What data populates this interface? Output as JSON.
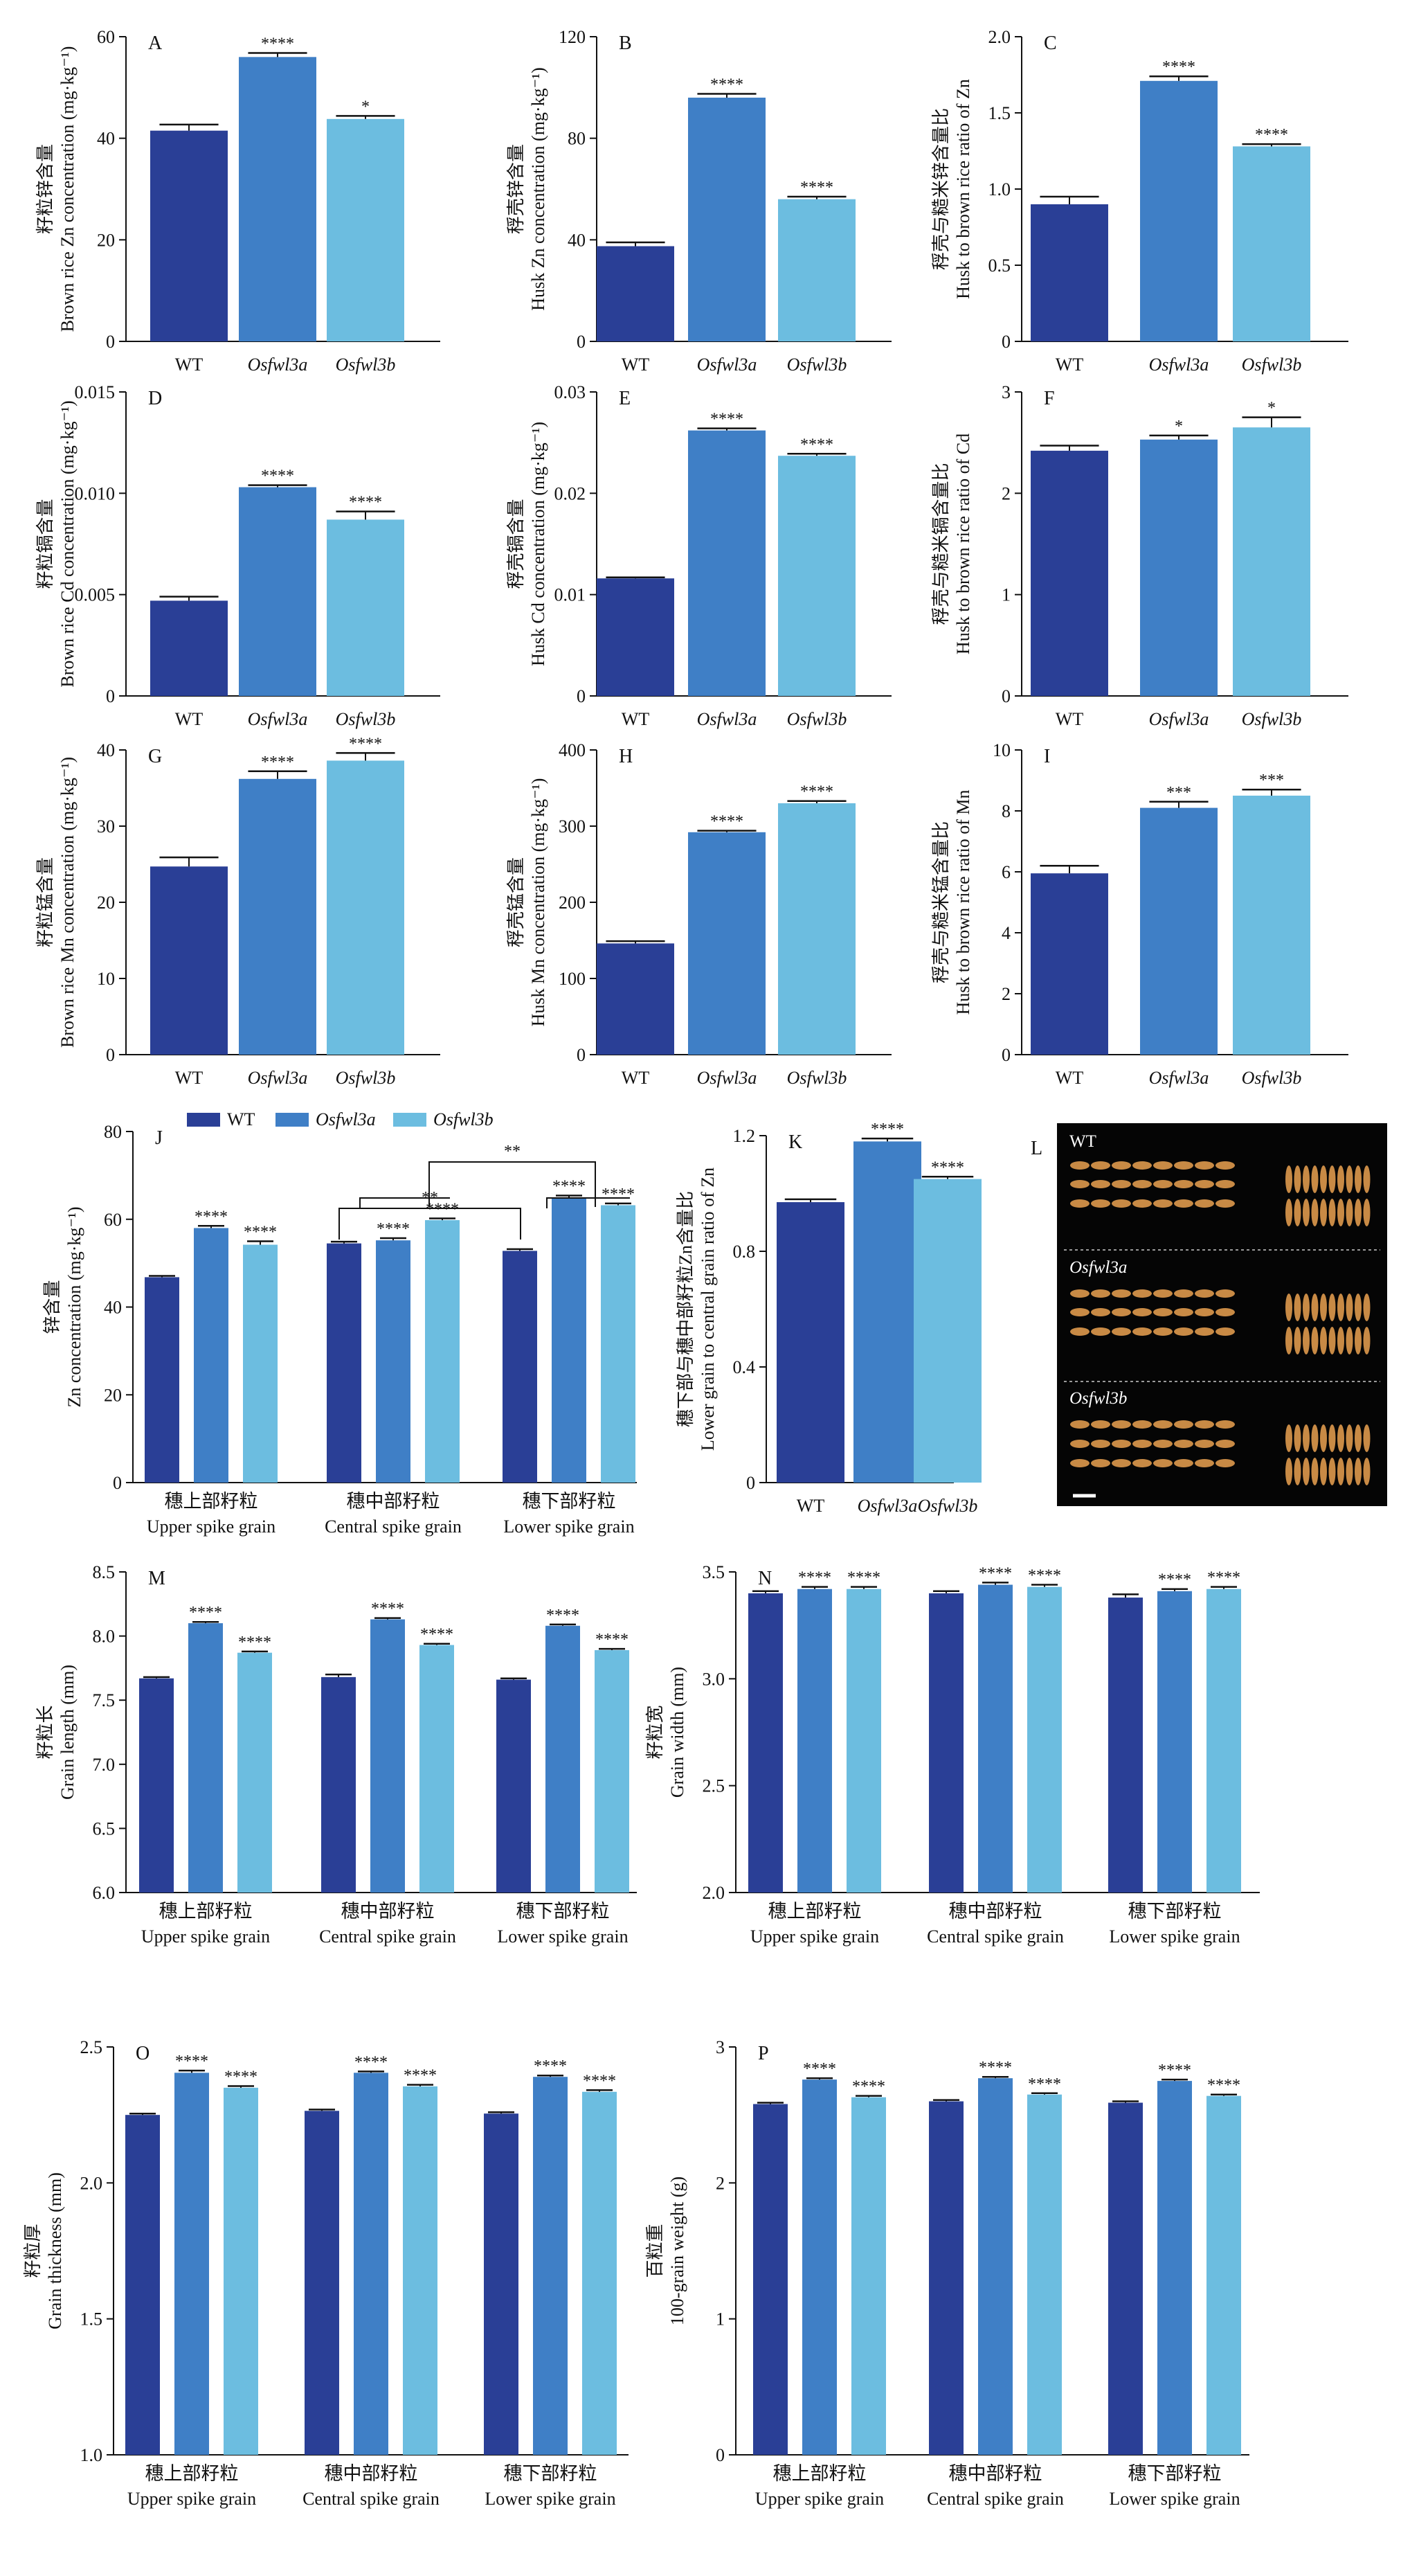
{
  "colors": {
    "wt": "#2a3f96",
    "osfwl3a": "#3f7fc6",
    "osfwl3b": "#6cbde0",
    "photo_bg": "#050505",
    "grain": "#c88a45"
  },
  "legend": {
    "items": [
      "WT",
      "Osfwl3a",
      "Osfwl3b"
    ]
  },
  "chart_data": [
    {
      "panel": "A",
      "type": "bar",
      "categories": [
        "WT",
        "Osfwl3a",
        "Osfwl3b"
      ],
      "values": [
        41.5,
        56,
        43.8
      ],
      "errors": [
        1.2,
        0.8,
        0.6
      ],
      "significance": [
        "",
        "****",
        "*"
      ],
      "ylim": [
        0,
        60
      ],
      "yticks": [
        0,
        20,
        40,
        60
      ],
      "ylabel_zh": "籽粒锌含量",
      "ylabel": "Brown rice Zn concentration (mg·kg⁻¹)"
    },
    {
      "panel": "B",
      "type": "bar",
      "categories": [
        "WT",
        "Osfwl3a",
        "Osfwl3b"
      ],
      "values": [
        37.5,
        96,
        56
      ],
      "errors": [
        1.5,
        1.5,
        1
      ],
      "significance": [
        "",
        "****",
        "****"
      ],
      "ylim": [
        0,
        120
      ],
      "yticks": [
        0,
        40,
        80,
        120
      ],
      "ylabel_zh": "稃壳锌含量",
      "ylabel": "Husk Zn concentration (mg·kg⁻¹)"
    },
    {
      "panel": "C",
      "type": "bar",
      "categories": [
        "WT",
        "Osfwl3a",
        "Osfwl3b"
      ],
      "values": [
        0.9,
        1.71,
        1.28
      ],
      "errors": [
        0.05,
        0.03,
        0.015
      ],
      "significance": [
        "",
        "****",
        "****"
      ],
      "ylim": [
        0,
        2.0
      ],
      "yticks": [
        0,
        0.5,
        1.0,
        1.5,
        2.0
      ],
      "yticklabels": [
        "0",
        "0.5",
        "1.0",
        "1.5",
        "2.0"
      ],
      "ylabel_zh": "稃壳与糙米锌含量比",
      "ylabel": "Husk to brown rice ratio of Zn"
    },
    {
      "panel": "D",
      "type": "bar",
      "categories": [
        "WT",
        "Osfwl3a",
        "Osfwl3b"
      ],
      "values": [
        0.0047,
        0.0103,
        0.0087
      ],
      "errors": [
        0.0002,
        0.0001,
        0.0004
      ],
      "significance": [
        "",
        "****",
        "****"
      ],
      "ylim": [
        0,
        0.015
      ],
      "yticks": [
        0,
        0.005,
        0.01,
        0.015
      ],
      "yticklabels": [
        "0",
        "0.005",
        "0.010",
        "0.015"
      ],
      "ylabel_zh": "籽粒镉含量",
      "ylabel": "Brown rice Cd concentration (mg·kg⁻¹)"
    },
    {
      "panel": "E",
      "type": "bar",
      "categories": [
        "WT",
        "Osfwl3a",
        "Osfwl3b"
      ],
      "values": [
        0.0116,
        0.0262,
        0.0237
      ],
      "errors": [
        0.0001,
        0.0002,
        0.0002
      ],
      "significance": [
        "",
        "****",
        "****"
      ],
      "ylim": [
        0,
        0.03
      ],
      "yticks": [
        0,
        0.01,
        0.02,
        0.03
      ],
      "yticklabels": [
        "0",
        "0.01",
        "0.02",
        "0.03"
      ],
      "ylabel_zh": "稃壳镉含量",
      "ylabel": "Husk Cd concentration (mg·kg⁻¹)"
    },
    {
      "panel": "F",
      "type": "bar",
      "categories": [
        "WT",
        "Osfwl3a",
        "Osfwl3b"
      ],
      "values": [
        2.42,
        2.53,
        2.65
      ],
      "errors": [
        0.05,
        0.04,
        0.1
      ],
      "significance": [
        "",
        "*",
        "*"
      ],
      "ylim": [
        0,
        3
      ],
      "yticks": [
        0,
        1,
        2,
        3
      ],
      "ylabel_zh": "稃壳与糙米镉含量比",
      "ylabel": "Husk to brown rice ratio of Cd"
    },
    {
      "panel": "G",
      "type": "bar",
      "categories": [
        "WT",
        "Osfwl3a",
        "Osfwl3b"
      ],
      "values": [
        24.7,
        36.2,
        38.6
      ],
      "errors": [
        1.2,
        1.0,
        1.0
      ],
      "significance": [
        "",
        "****",
        "****"
      ],
      "ylim": [
        0,
        40
      ],
      "yticks": [
        0,
        10,
        20,
        30,
        40
      ],
      "ylabel_zh": "籽粒锰含量",
      "ylabel": "Brown rice Mn concentration (mg·kg⁻¹)"
    },
    {
      "panel": "H",
      "type": "bar",
      "categories": [
        "WT",
        "Osfwl3a",
        "Osfwl3b"
      ],
      "values": [
        146,
        292,
        330
      ],
      "errors": [
        3,
        2,
        3
      ],
      "significance": [
        "",
        "****",
        "****"
      ],
      "ylim": [
        0,
        400
      ],
      "yticks": [
        0,
        100,
        200,
        300,
        400
      ],
      "ylabel_zh": "稃壳锰含量",
      "ylabel": "Husk Mn concentration (mg·kg⁻¹)"
    },
    {
      "panel": "I",
      "type": "bar",
      "categories": [
        "WT",
        "Osfwl3a",
        "Osfwl3b"
      ],
      "values": [
        5.95,
        8.1,
        8.5
      ],
      "errors": [
        0.25,
        0.2,
        0.2
      ],
      "significance": [
        "",
        "***",
        "***"
      ],
      "ylim": [
        0,
        10
      ],
      "yticks": [
        0,
        2,
        4,
        6,
        8,
        10
      ],
      "ylabel_zh": "稃壳与糙米锰含量比",
      "ylabel": "Husk to brown rice ratio of Mn"
    },
    {
      "panel": "J",
      "type": "bar",
      "groups": [
        [
          "穗上部籽粒",
          "Upper spike grain"
        ],
        [
          "穗中部籽粒",
          "Central spike grain"
        ],
        [
          "穗下部籽粒",
          "Lower spike grain"
        ]
      ],
      "series": [
        {
          "name": "WT",
          "values": [
            46.8,
            54.5,
            52.8
          ],
          "errors": [
            0.3,
            0.4,
            0.4
          ]
        },
        {
          "name": "Osfwl3a",
          "values": [
            58,
            55.2,
            65
          ],
          "errors": [
            0.5,
            0.5,
            0.4
          ]
        },
        {
          "name": "Osfwl3b",
          "values": [
            54.2,
            59.8,
            63.2
          ],
          "errors": [
            0.8,
            0.4,
            0.4
          ]
        }
      ],
      "significance": [
        [
          "",
          "****",
          "****"
        ],
        [
          "",
          "****",
          "****"
        ],
        [
          "",
          "****",
          "****"
        ]
      ],
      "brackets": [
        "**",
        "**"
      ],
      "ylim": [
        0,
        80
      ],
      "yticks": [
        0,
        20,
        40,
        60,
        80
      ],
      "ylabel_zh": "锌含量",
      "ylabel": "Zn concentration (mg·kg⁻¹)"
    },
    {
      "panel": "K",
      "type": "bar",
      "categories": [
        "WT",
        "Osfwl3a",
        "Osfwl3b"
      ],
      "values": [
        0.97,
        1.18,
        1.05
      ],
      "errors": [
        0.01,
        0.01,
        0.008
      ],
      "significance": [
        "",
        "****",
        "****"
      ],
      "ylim": [
        0,
        1.2
      ],
      "yticks": [
        0,
        0.4,
        0.8,
        1.2
      ],
      "yticklabels": [
        "0",
        "0.4",
        "0.8",
        "1.2"
      ],
      "ylabel_zh": "穗下部与穗中部籽粒Zn含量比",
      "ylabel": "Lower grain to central grain ratio of Zn"
    },
    {
      "panel": "M",
      "type": "bar",
      "groups": [
        [
          "穗上部籽粒",
          "Upper spike grain"
        ],
        [
          "穗中部籽粒",
          "Central spike grain"
        ],
        [
          "穗下部籽粒",
          "Lower spike grain"
        ]
      ],
      "series": [
        {
          "name": "WT",
          "values": [
            7.67,
            7.68,
            7.66
          ],
          "errors": [
            0.01,
            0.02,
            0.01
          ]
        },
        {
          "name": "Osfwl3a",
          "values": [
            8.1,
            8.13,
            8.08
          ],
          "errors": [
            0.01,
            0.01,
            0.01
          ]
        },
        {
          "name": "Osfwl3b",
          "values": [
            7.87,
            7.93,
            7.89
          ],
          "errors": [
            0.01,
            0.01,
            0.01
          ]
        }
      ],
      "significance": [
        [
          "",
          "****",
          "****"
        ],
        [
          "",
          "****",
          "****"
        ],
        [
          "",
          "****",
          "****"
        ]
      ],
      "ylim": [
        6.0,
        8.5
      ],
      "yticks": [
        6,
        6.5,
        7,
        7.5,
        8,
        8.5
      ],
      "yticklabels": [
        "6.0",
        "6.5",
        "7.0",
        "7.5",
        "8.0",
        "8.5"
      ],
      "ylabel_zh": "籽粒长",
      "ylabel": "Grain length (mm)"
    },
    {
      "panel": "N",
      "type": "bar",
      "groups": [
        [
          "穗上部籽粒",
          "Upper spike grain"
        ],
        [
          "穗中部籽粒",
          "Central spike grain"
        ],
        [
          "穗下部籽粒",
          "Lower spike grain"
        ]
      ],
      "series": [
        {
          "name": "WT",
          "values": [
            3.4,
            3.4,
            3.38
          ],
          "errors": [
            0.01,
            0.01,
            0.015
          ]
        },
        {
          "name": "Osfwl3a",
          "values": [
            3.42,
            3.44,
            3.41
          ],
          "errors": [
            0.01,
            0.01,
            0.01
          ]
        },
        {
          "name": "Osfwl3b",
          "values": [
            3.42,
            3.43,
            3.42
          ],
          "errors": [
            0.01,
            0.01,
            0.01
          ]
        }
      ],
      "significance": [
        [
          "",
          "****",
          "****"
        ],
        [
          "",
          "****",
          "****"
        ],
        [
          "",
          "****",
          "****"
        ]
      ],
      "ylim": [
        2.0,
        3.5
      ],
      "yticks": [
        2,
        2.5,
        3,
        3.5
      ],
      "yticklabels": [
        "2.0",
        "2.5",
        "3.0",
        "3.5"
      ],
      "ylabel_zh": "籽粒宽",
      "ylabel": "Grain width (mm)"
    },
    {
      "panel": "O",
      "type": "bar",
      "groups": [
        [
          "穗上部籽粒",
          "Upper spike grain"
        ],
        [
          "穗中部籽粒",
          "Central spike grain"
        ],
        [
          "穗下部籽粒",
          "Lower spike grain"
        ]
      ],
      "series": [
        {
          "name": "WT",
          "values": [
            2.25,
            2.265,
            2.255
          ],
          "errors": [
            0.005,
            0.005,
            0.005
          ]
        },
        {
          "name": "Osfwl3a",
          "values": [
            2.405,
            2.405,
            2.39
          ],
          "errors": [
            0.008,
            0.005,
            0.005
          ]
        },
        {
          "name": "Osfwl3b",
          "values": [
            2.35,
            2.355,
            2.335
          ],
          "errors": [
            0.006,
            0.006,
            0.006
          ]
        }
      ],
      "significance": [
        [
          "",
          "****",
          "****"
        ],
        [
          "",
          "****",
          "****"
        ],
        [
          "",
          "****",
          "****"
        ]
      ],
      "ylim": [
        1.0,
        2.5
      ],
      "yticks": [
        1,
        1.5,
        2,
        2.5
      ],
      "yticklabels": [
        "1.0",
        "1.5",
        "2.0",
        "2.5"
      ],
      "ylabel_zh": "籽粒厚",
      "ylabel": "Grain thickness (mm)"
    },
    {
      "panel": "P",
      "type": "bar",
      "groups": [
        [
          "穗上部籽粒",
          "Upper spike grain"
        ],
        [
          "穗中部籽粒",
          "Central spike grain"
        ],
        [
          "穗下部籽粒",
          "Lower spike grain"
        ]
      ],
      "series": [
        {
          "name": "WT",
          "values": [
            2.58,
            2.6,
            2.59
          ],
          "errors": [
            0.01,
            0.01,
            0.01
          ]
        },
        {
          "name": "Osfwl3a",
          "values": [
            2.76,
            2.77,
            2.75
          ],
          "errors": [
            0.01,
            0.01,
            0.01
          ]
        },
        {
          "name": "Osfwl3b",
          "values": [
            2.63,
            2.65,
            2.64
          ],
          "errors": [
            0.01,
            0.01,
            0.01
          ]
        }
      ],
      "significance": [
        [
          "",
          "****",
          "****"
        ],
        [
          "",
          "****",
          "****"
        ],
        [
          "",
          "****",
          "****"
        ]
      ],
      "ylim": [
        0,
        3
      ],
      "yticks": [
        0,
        1,
        2,
        3
      ],
      "ylabel_zh": "百粒重",
      "ylabel": "100-grain weight (g)"
    }
  ],
  "photo": {
    "panel": "L",
    "labels": [
      "WT",
      "Osfwl3a",
      "Osfwl3b"
    ]
  }
}
